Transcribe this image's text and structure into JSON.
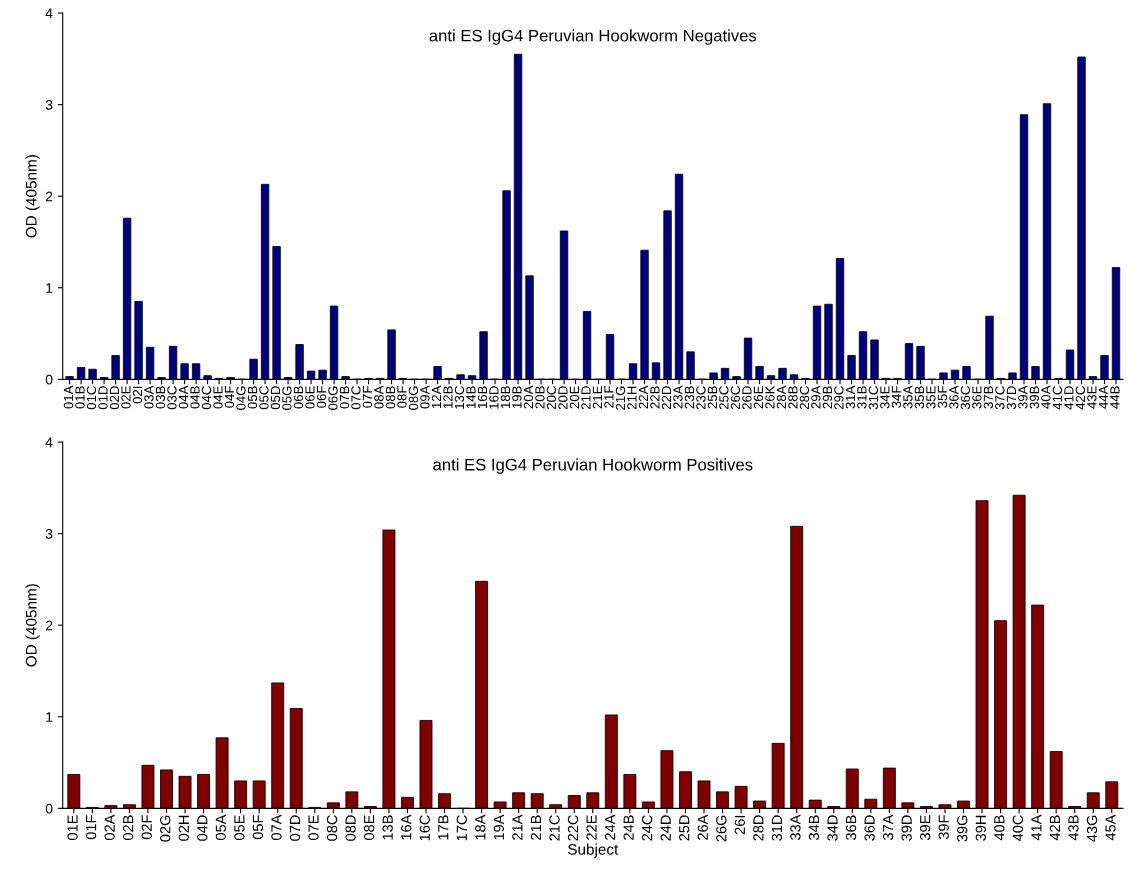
{
  "chart_data": [
    {
      "type": "bar",
      "title": "anti ES IgG4 Peruvian Hookworm Negatives",
      "ylabel": "OD (405nm)",
      "categories": [
        "01A",
        "01B",
        "01C",
        "01D",
        "02D",
        "02E",
        "02I",
        "03A",
        "03B",
        "03C",
        "04A",
        "04B",
        "04C",
        "04E",
        "04F",
        "04G",
        "05B",
        "05C",
        "05D",
        "05G",
        "06B",
        "06E",
        "06F",
        "06G",
        "07B",
        "07C",
        "07F",
        "08A",
        "08B",
        "08F",
        "08G",
        "09A",
        "12A",
        "12B",
        "13C",
        "14B",
        "16B",
        "16D",
        "18B",
        "19B",
        "20A",
        "20B",
        "20C",
        "20D",
        "20E",
        "21D",
        "21E",
        "21F",
        "21G",
        "21H",
        "22A",
        "22B",
        "22D",
        "23A",
        "23B",
        "23C",
        "25B",
        "25C",
        "26C",
        "26D",
        "26E",
        "26K",
        "28A",
        "28B",
        "28C",
        "29A",
        "29B",
        "29C",
        "31A",
        "31B",
        "31C",
        "34E",
        "34F",
        "35A",
        "35B",
        "35E",
        "35F",
        "36A",
        "36C",
        "36E",
        "37B",
        "37C",
        "37D",
        "39A",
        "39B",
        "40A",
        "41C",
        "41D",
        "42C",
        "43E",
        "44A",
        "44B"
      ],
      "values": [
        0.03,
        0.13,
        0.11,
        0.02,
        0.26,
        1.76,
        0.85,
        0.35,
        0.02,
        0.36,
        0.17,
        0.17,
        0.04,
        0.01,
        0.02,
        0,
        0.22,
        2.13,
        1.45,
        0.02,
        0.38,
        0.09,
        0.1,
        0.8,
        0.03,
        0,
        0.01,
        0.01,
        0.54,
        0.01,
        0,
        0,
        0.14,
        0.01,
        0.05,
        0.04,
        0.52,
        0,
        2.06,
        3.55,
        1.13,
        0,
        0,
        1.62,
        0,
        0.74,
        0,
        0.49,
        0,
        0.17,
        1.41,
        0.18,
        1.84,
        2.24,
        0.3,
        0,
        0.07,
        0.12,
        0.03,
        0.45,
        0.14,
        0.04,
        0.12,
        0.05,
        0.01,
        0.8,
        0.82,
        1.32,
        0.26,
        0.52,
        0.43,
        0.01,
        0.01,
        0.39,
        0.36,
        0,
        0.07,
        0.1,
        0.14,
        0,
        0.69,
        0.01,
        0.07,
        2.89,
        0.14,
        3.01,
        0.01,
        0.32,
        3.52,
        0.03,
        0.26,
        1.22
      ],
      "color": "#000080",
      "ylim": [
        0,
        4
      ],
      "yticks": [
        0,
        1,
        2,
        3,
        4
      ],
      "grid": false,
      "legend": false
    },
    {
      "type": "bar",
      "title": "anti ES IgG4 Peruvian Hookworm Positives",
      "ylabel": "OD (405nm)",
      "xlabel": "Subject",
      "categories": [
        "01E",
        "01F",
        "02A",
        "02B",
        "02F",
        "02G",
        "02H",
        "04D",
        "05A",
        "05E",
        "05F",
        "07A",
        "07D",
        "07E",
        "08C",
        "08D",
        "08E",
        "13B",
        "16A",
        "16C",
        "17B",
        "17C",
        "18A",
        "19A",
        "21A",
        "21B",
        "21C",
        "22C",
        "22E",
        "24A",
        "24B",
        "24C",
        "24D",
        "25D",
        "26A",
        "26G",
        "26I",
        "28D",
        "31D",
        "33A",
        "34B",
        "34D",
        "36B",
        "36D",
        "37A",
        "39D",
        "39E",
        "39F",
        "39G",
        "39H",
        "40B",
        "40C",
        "41A",
        "42B",
        "43B",
        "43G",
        "45A"
      ],
      "values": [
        0.37,
        0.01,
        0.03,
        0.04,
        0.47,
        0.42,
        0.35,
        0.37,
        0.77,
        0.3,
        0.3,
        1.37,
        1.09,
        0.01,
        0.06,
        0.18,
        0.02,
        3.04,
        0.12,
        0.96,
        0.16,
        0,
        2.48,
        0.07,
        0.17,
        0.16,
        0.04,
        0.14,
        0.17,
        1.02,
        0.37,
        0.07,
        0.63,
        0.4,
        0.3,
        0.18,
        0.24,
        0.08,
        0.71,
        3.08,
        0.09,
        0.02,
        0.43,
        0.1,
        0.44,
        0.06,
        0.02,
        0.04,
        0.08,
        3.36,
        2.05,
        3.42,
        2.22,
        0.62,
        0.02,
        0.17,
        0.29
      ],
      "color": "#800000",
      "ylim": [
        0,
        4
      ],
      "yticks": [
        0,
        1,
        2,
        3,
        4
      ],
      "grid": false,
      "legend": false
    }
  ]
}
